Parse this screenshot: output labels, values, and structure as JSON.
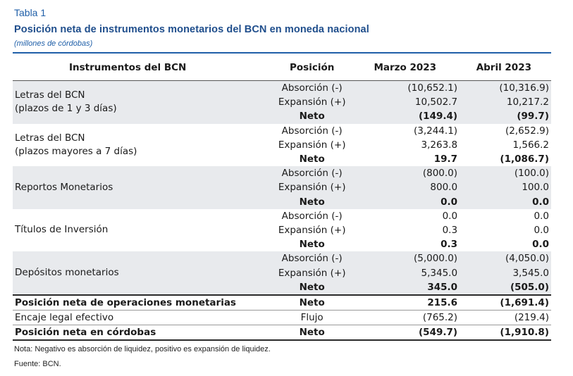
{
  "header": {
    "label": "Tabla 1",
    "title": "Posición neta de instrumentos monetarios del BCN en moneda nacional",
    "subtitle": "(millones de córdobas)"
  },
  "columns": [
    "Instrumentos del BCN",
    "Posición",
    "Marzo 2023",
    "Abril 2023"
  ],
  "groups": [
    {
      "name": "Letras del BCN\n(plazos de 1 y 3 días)",
      "rows": [
        [
          "Absorción (-)",
          "(10,652.1)",
          "(10,316.9)"
        ],
        [
          "Expansión (+)",
          "10,502.7",
          "10,217.2"
        ],
        [
          "Neto",
          "(149.4)",
          "(99.7)"
        ]
      ]
    },
    {
      "name": "Letras del BCN\n(plazos mayores a 7 días)",
      "rows": [
        [
          "Absorción (-)",
          "(3,244.1)",
          "(2,652.9)"
        ],
        [
          "Expansión (+)",
          "3,263.8",
          "1,566.2"
        ],
        [
          "Neto",
          "19.7",
          "(1,086.7)"
        ]
      ]
    },
    {
      "name": "Reportos Monetarios",
      "rows": [
        [
          "Absorción (-)",
          "(800.0)",
          "(100.0)"
        ],
        [
          "Expansión (+)",
          "800.0",
          "100.0"
        ],
        [
          "Neto",
          "0.0",
          "0.0"
        ]
      ]
    },
    {
      "name": "Títulos de Inversión",
      "rows": [
        [
          "Absorción (-)",
          "0.0",
          "0.0"
        ],
        [
          "Expansión (+)",
          "0.3",
          "0.0"
        ],
        [
          "Neto",
          "0.3",
          "0.0"
        ]
      ]
    },
    {
      "name": "Depósitos monetarios",
      "rows": [
        [
          "Absorción (-)",
          "(5,000.0)",
          "(4,050.0)"
        ],
        [
          "Expansión (+)",
          "5,345.0",
          "3,545.0"
        ],
        [
          "Neto",
          "345.0",
          "(505.0)"
        ]
      ]
    }
  ],
  "summary": [
    [
      "Posición neta de operaciones monetarias",
      "Neto",
      "215.6",
      "(1,691.4)"
    ],
    [
      "Encaje legal efectivo",
      "Flujo",
      "(765.2)",
      "(219.4)"
    ],
    [
      "Posición neta en córdobas",
      "Neto",
      "(549.7)",
      "(1,910.8)"
    ]
  ],
  "footer": {
    "note": "Nota: Negativo es absorción de liquidez, positivo es expansión de liquidez.",
    "source": "Fuente: BCN."
  }
}
